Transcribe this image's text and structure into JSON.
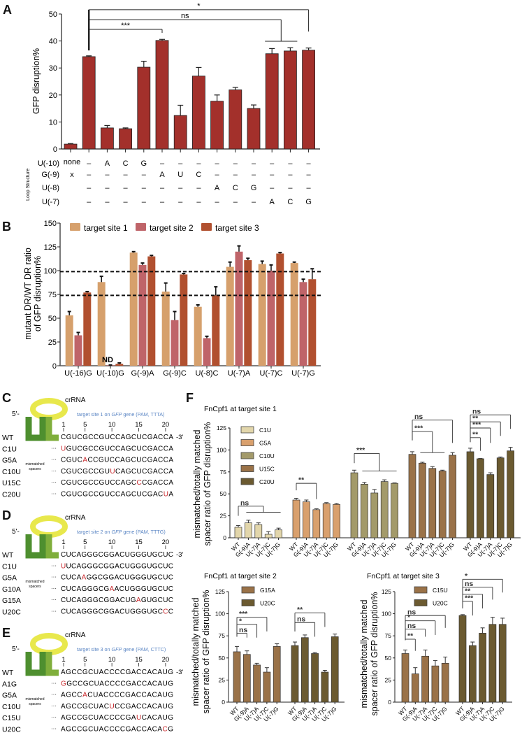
{
  "panel_labels": {
    "A": "A",
    "B": "B",
    "C": "C",
    "D": "D",
    "E": "E",
    "F": "F"
  },
  "chart_data": [
    {
      "id": "A",
      "type": "bar",
      "title": "",
      "xlabel": "",
      "ylabel": "GFP disruption%",
      "ylim": [
        0,
        50
      ],
      "yticks": [
        0,
        10,
        20,
        30,
        40,
        50
      ],
      "color": "#a3302b",
      "values": [
        1.8,
        34.2,
        7.8,
        7.5,
        30.3,
        40.2,
        12.4,
        27.0,
        17.7,
        21.9,
        15.0,
        35.3,
        36.3,
        36.6
      ],
      "errors": [
        0.2,
        0.3,
        0.9,
        0.3,
        2.2,
        0.4,
        3.8,
        3.2,
        2.3,
        0.9,
        1.3,
        1.9,
        1.2,
        0.8
      ],
      "loop_structure": {
        "label": "Loop Structure",
        "rows": [
          {
            "name": "U(-10)",
            "cells": [
              "none",
              "–",
              "A",
              "C",
              "G",
              "–",
              "–",
              "–",
              "–",
              "–",
              "–",
              "–",
              "–",
              "–"
            ]
          },
          {
            "name": "G(-9)",
            "cells": [
              "x",
              "–",
              "–",
              "–",
              "–",
              "A",
              "U",
              "C",
              "–",
              "–",
              "–",
              "–",
              "–",
              "–"
            ]
          },
          {
            "name": "U(-8)",
            "cells": [
              "",
              "–",
              "–",
              "–",
              "–",
              "–",
              "–",
              "–",
              "A",
              "C",
              "G",
              "–",
              "–",
              "–"
            ]
          },
          {
            "name": "U(-7)",
            "cells": [
              "",
              "–",
              "–",
              "–",
              "–",
              "–",
              "–",
              "–",
              "–",
              "–",
              "–",
              "A",
              "C",
              "G"
            ]
          }
        ]
      },
      "reference_bar": 1,
      "reference_line_range": [
        36.5,
        51.6
      ],
      "significance": [
        {
          "label": "*",
          "from": 1,
          "to": 13,
          "level": 51.6,
          "to_end": 43.5
        },
        {
          "label": "ns",
          "from": 1,
          "to": [
            11,
            12
          ],
          "level": 47.9,
          "span_at": 39.9
        },
        {
          "label": "***",
          "from": 1,
          "to": 5,
          "level": 44.3,
          "to_end": 43.0
        }
      ]
    },
    {
      "id": "B",
      "type": "bar",
      "title": "",
      "xlabel": "",
      "ylabel": [
        "mutant DR/WT DR ratio",
        "of GFP disruption%"
      ],
      "ylim": [
        0,
        150
      ],
      "yticks": [
        0,
        25,
        50,
        75,
        100,
        125,
        150
      ],
      "categories": [
        "U(-16)G",
        "U(-10)G",
        "G(-9)A",
        "G(-9)C",
        "U(-8)C",
        "U(-7)A",
        "U(-7)C",
        "U(-7)G"
      ],
      "series": [
        {
          "name": "target site 1",
          "color": "#d6a06c",
          "values": [
            53,
            88,
            119,
            78,
            62,
            104,
            107,
            108
          ],
          "errors": [
            4,
            6,
            1,
            9,
            2,
            5,
            3,
            1
          ]
        },
        {
          "name": "target site 2",
          "color": "#bf6469",
          "values": [
            32,
            0.5,
            106,
            48,
            29,
            120,
            100,
            88
          ],
          "errors": [
            3,
            0.3,
            2,
            9,
            2,
            6,
            6,
            3
          ]
        },
        {
          "name": "target site 3",
          "color": "#b1502f",
          "values": [
            77,
            2,
            115,
            96,
            74,
            111,
            118,
            91
          ],
          "errors": [
            1,
            1,
            1,
            1,
            9,
            2,
            1,
            11
          ]
        }
      ],
      "reference_lines": [
        99,
        74
      ],
      "legend": "top",
      "annotations": [
        {
          "text": "ND",
          "category": 1
        }
      ]
    },
    {
      "id": "F1",
      "type": "bar",
      "title": "FnCpf1 at target site 1",
      "ylabel": [
        "mismatched/totally matched",
        "spacer ratio of GFP disruption%"
      ],
      "ylim": [
        0,
        125
      ],
      "yticks": [
        0,
        25,
        50,
        75,
        100,
        125
      ],
      "categories": [
        "WT",
        "G(-9)A",
        "U(-7)A",
        "U(-7)C",
        "U(-7)G"
      ],
      "series": [
        {
          "name": "C1U",
          "color": "#e2d6ab",
          "values": [
            12,
            17,
            15,
            4,
            9
          ],
          "errors": [
            2,
            3,
            2,
            3,
            2
          ]
        },
        {
          "name": "G5A",
          "color": "#d9a06d",
          "values": [
            43,
            41,
            32,
            39,
            38
          ],
          "errors": [
            2,
            2,
            1,
            1,
            1
          ]
        },
        {
          "name": "C10U",
          "color": "#a39a6a",
          "values": [
            74,
            61,
            51,
            64,
            62
          ],
          "errors": [
            3,
            2,
            4,
            2,
            0.5
          ]
        },
        {
          "name": "U15C",
          "color": "#9a7248",
          "values": [
            95,
            85,
            79,
            76,
            94
          ],
          "errors": [
            3,
            1,
            2,
            1,
            3
          ]
        },
        {
          "name": "C20U",
          "color": "#6b5a30",
          "values": [
            98,
            90,
            72,
            91,
            99
          ],
          "errors": [
            4,
            0.3,
            2,
            1,
            4
          ]
        }
      ],
      "legend": "top-left",
      "significance": [
        {
          "group": 0,
          "label": "ns",
          "level": 36,
          "left_end": 25,
          "to": [
            1,
            4
          ],
          "span_at": 29
        },
        {
          "group": 1,
          "label": "**",
          "level": 62,
          "left_end": 54,
          "to": 2,
          "to_end": 44
        },
        {
          "group": 2,
          "label": "***",
          "level": 96,
          "left_end": 85,
          "to": [
            1,
            4
          ],
          "span_at": 76
        },
        {
          "group": 3,
          "label": "ns",
          "level": 134,
          "left_end": 111,
          "to": 4,
          "to_end": 108
        },
        {
          "group": 3,
          "label": "***",
          "level": 121,
          "left_end": 111,
          "to": [
            1,
            3
          ],
          "span_at": 97
        },
        {
          "group": 4,
          "label": "ns",
          "level": 140,
          "left_end": 109,
          "to": 4,
          "to_end": 124
        },
        {
          "group": 4,
          "label": "**",
          "level": 132,
          "left_end": 109,
          "to": 3,
          "to_end": 116
        },
        {
          "group": 4,
          "label": "***",
          "level": 125,
          "left_end": 109,
          "to": 2,
          "to_end": 108
        },
        {
          "group": 4,
          "label": "**",
          "level": 114,
          "left_end": 109,
          "to": 1,
          "to_end": 99
        }
      ]
    },
    {
      "id": "F2",
      "type": "bar",
      "title": "FnCpf1 at target site 2",
      "ylabel": [
        "mismatched/totally matched",
        "spacer ratio of GFP disruption%"
      ],
      "ylim": [
        0,
        125
      ],
      "yticks": [
        0,
        25,
        50,
        75,
        100,
        125
      ],
      "categories": [
        "WT",
        "G(-9)A",
        "U(-7)A",
        "U(-7)C",
        "U(-7)G"
      ],
      "series": [
        {
          "name": "G15A",
          "color": "#9a7248",
          "values": [
            57,
            54,
            42,
            34,
            63
          ],
          "errors": [
            6,
            4,
            2,
            5,
            3
          ]
        },
        {
          "name": "U20C",
          "color": "#6b5a30",
          "values": [
            64,
            73,
            55,
            34,
            74
          ],
          "errors": [
            4,
            3,
            1,
            2,
            3
          ]
        }
      ],
      "legend": "top-left",
      "significance": [
        {
          "group": 0,
          "label": "***",
          "level": 96,
          "left_end": 74,
          "to": 3,
          "to_end": 80
        },
        {
          "group": 0,
          "label": "*",
          "level": 88,
          "left_end": 74,
          "to": 2,
          "to_end": 73
        },
        {
          "group": 0,
          "label": "ns",
          "level": 78,
          "left_end": 74,
          "to": 1,
          "to_end": 73
        },
        {
          "group": 1,
          "label": "**",
          "level": 101,
          "left_end": 80,
          "to": 3,
          "to_end": 85
        },
        {
          "group": 1,
          "label": "ns",
          "level": 90,
          "left_end": 80,
          "to": 2,
          "to_end": 74
        }
      ]
    },
    {
      "id": "F3",
      "type": "bar",
      "title": "FnCpf1 at target site 3",
      "ylabel": [
        "mismatched/totally matched",
        "spacer ratio of GFP disruption%"
      ],
      "ylim": [
        0,
        125
      ],
      "yticks": [
        0,
        25,
        50,
        75,
        100,
        125
      ],
      "categories": [
        "WT",
        "G(-9)A",
        "U(-7)A",
        "U(-7)C",
        "U(-7)G"
      ],
      "series": [
        {
          "name": "C15U",
          "color": "#9a7248",
          "values": [
            55,
            32,
            52,
            41,
            44
          ],
          "errors": [
            4,
            7,
            7,
            6,
            7
          ]
        },
        {
          "name": "U20C",
          "color": "#6b5a30",
          "values": [
            98,
            64,
            78,
            88,
            88
          ],
          "errors": [
            1,
            4,
            6,
            8,
            7
          ]
        }
      ],
      "legend": "top-left",
      "significance": [
        {
          "group": 0,
          "label": "ns",
          "level": 98,
          "left_end": 70,
          "to": 4,
          "to_end": 84
        },
        {
          "group": 0,
          "label": "*",
          "level": 92,
          "left_end": 70,
          "to": 3,
          "to_end": 76
        },
        {
          "group": 0,
          "label": "ns",
          "level": 82.6,
          "left_end": 70,
          "to": 2,
          "to_end": 74
        },
        {
          "group": 0,
          "label": "**",
          "level": 71.2,
          "left_end": 70,
          "to": 1,
          "to_end": 58
        },
        {
          "group": 1,
          "label": "*",
          "level": 139,
          "left_end": 106,
          "to": 4,
          "to_end": 124
        },
        {
          "group": 1,
          "label": "ns",
          "level": 130,
          "left_end": 106,
          "to": 3,
          "to_end": 116
        },
        {
          "group": 1,
          "label": "**",
          "level": 122,
          "left_end": 106,
          "to": 2,
          "to_end": 106
        },
        {
          "group": 1,
          "label": "***",
          "level": 114,
          "left_end": 106,
          "to": 1,
          "to_end": 98
        }
      ]
    }
  ],
  "sequence_panels": [
    {
      "letter": "C",
      "crRNA": "crRNA",
      "five_prime": "5'-",
      "three_prime": "-3'",
      "target_pre": "target site 1 on ",
      "target_gene": "GFP",
      "target_post": " gene (PAM, TTTA)",
      "positions": [
        "1",
        "5",
        "10",
        "15",
        "20"
      ],
      "mismatch_label": [
        "mismatched",
        "spacers"
      ],
      "ellipsis": "···",
      "rows": [
        {
          "name": "WT",
          "seq": "CGUCGCCGUCCAGCUCGACCA",
          "mut": 0
        },
        {
          "name": "C1U",
          "seq": "UGUCGCCGUCCAGCUCGACCA",
          "mut": 1
        },
        {
          "name": "G5A",
          "seq": "CGUCACCGUCCAGCUCGACCA",
          "mut": 5
        },
        {
          "name": "C10U",
          "seq": "CGUCGCCGUUCAGCUCGACCA",
          "mut": 10
        },
        {
          "name": "U15C",
          "seq": "CGUCGCCGUCCAGCCCGACCA",
          "mut": 15
        },
        {
          "name": "C20U",
          "seq": "CGUCGCCGUCCAGCUCGACUA",
          "mut": 20
        }
      ]
    },
    {
      "letter": "D",
      "crRNA": "crRNA",
      "five_prime": "5'-",
      "three_prime": "-3'",
      "target_pre": "target site 2 on ",
      "target_gene": "GFP",
      "target_post": " gene (PAM, TTTG)",
      "positions": [
        "1",
        "5",
        "10",
        "15",
        "20"
      ],
      "mismatch_label": [
        "mismatched",
        "spacers"
      ],
      "ellipsis": "···",
      "rows": [
        {
          "name": "WT",
          "seq": "CUCAGGGCGGACUGGGUGCUC",
          "mut": 0
        },
        {
          "name": "C1U",
          "seq": "UUCAGGGCGGACUGGGUGCUC",
          "mut": 1
        },
        {
          "name": "G5A",
          "seq": "CUCAAGGCGGACUGGGUGCUC",
          "mut": 5
        },
        {
          "name": "G10A",
          "seq": "CUCAGGGCGAACUGGGUGCUC",
          "mut": 10
        },
        {
          "name": "G15A",
          "seq": "CUCAGGGCGGACUGAGUGCUC",
          "mut": 15
        },
        {
          "name": "U20C",
          "seq": "CUCAGGGCGGACUGGGUGCCC",
          "mut": 20
        }
      ]
    },
    {
      "letter": "E",
      "crRNA": "crRNA",
      "five_prime": "5'-",
      "three_prime": "-3'",
      "target_pre": "target site 3 on ",
      "target_gene": "GFP",
      "target_post": " gene (PAM, CTTC)",
      "positions": [
        "1",
        "5",
        "10",
        "15",
        "20"
      ],
      "mismatch_label": [
        "mismatched",
        "spacers"
      ],
      "ellipsis": "···",
      "rows": [
        {
          "name": "WT",
          "seq": "AGCCGCUACCCCGACCACAUG",
          "mut": 0
        },
        {
          "name": "A1G",
          "seq": "GGCCGCUACCCCGACCACAUG",
          "mut": 1
        },
        {
          "name": "G5A",
          "seq": "AGCCACUACCCCGACCACAUG",
          "mut": 5
        },
        {
          "name": "C10U",
          "seq": "AGCCGCUACUCCGACCACAUG",
          "mut": 10
        },
        {
          "name": "C15U",
          "seq": "AGCCGCUACCCCGAUCACAUG",
          "mut": 15
        },
        {
          "name": "U20C",
          "seq": "AGCCGCUACCCCGACCACACG",
          "mut": 20
        }
      ]
    }
  ],
  "colors": {
    "mutation": "#c8262a",
    "target_text": "#5b86c4",
    "loop": "#e8e84c",
    "stem_dark": "#4e8f2f",
    "stem_light": "#7fae3b"
  }
}
